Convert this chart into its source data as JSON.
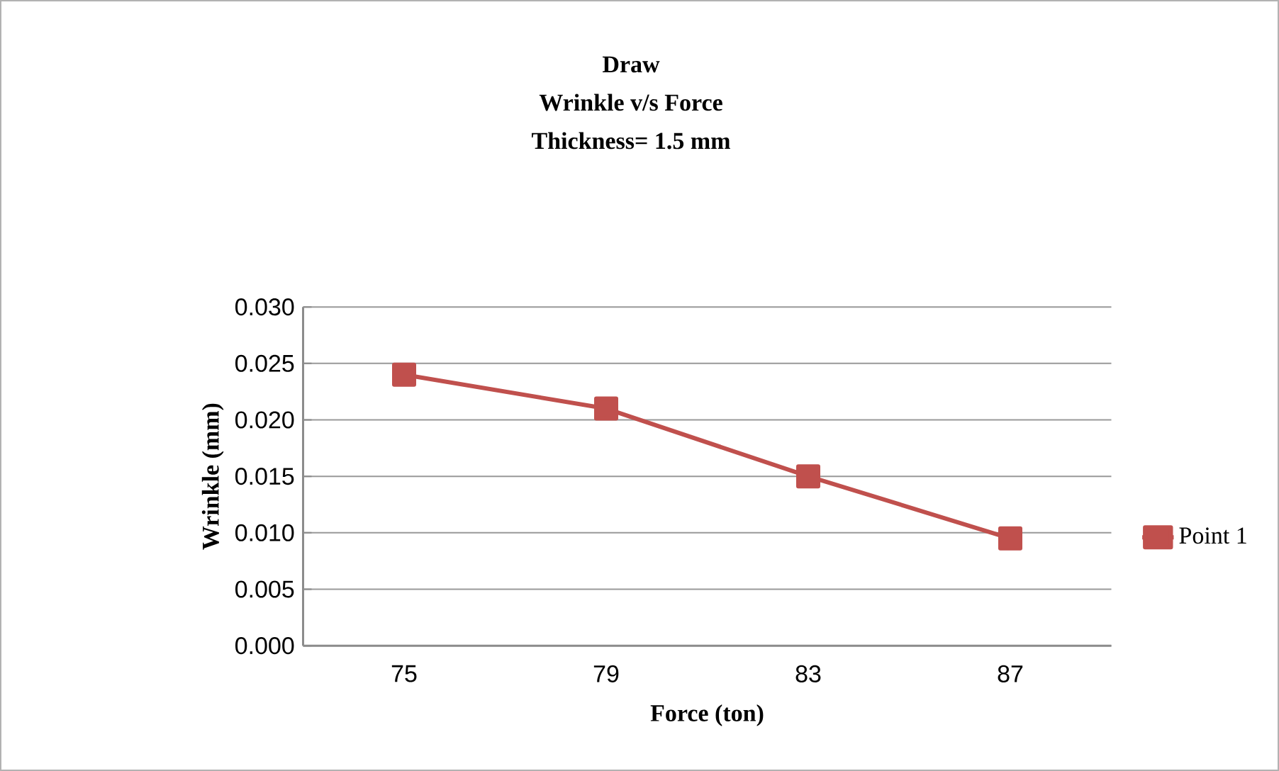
{
  "chart_data": {
    "type": "line",
    "title": "Draw",
    "subtitle": "Wrinkle v/s Force",
    "annotations": [
      "Thickness= 1.5 mm"
    ],
    "xlabel": "Force (ton)",
    "ylabel": "Wrinkle (mm)",
    "categories": [
      "75",
      "79",
      "83",
      "87"
    ],
    "series": [
      {
        "name": "Point 1",
        "color": "#c0504d",
        "values": [
          0.024,
          0.021,
          0.015,
          0.0095
        ]
      }
    ],
    "ylim": [
      0,
      0.03
    ],
    "yticks": [
      {
        "value": 0,
        "label": "0.000"
      },
      {
        "value": 0.005,
        "label": "0.005"
      },
      {
        "value": 0.01,
        "label": "0.010"
      },
      {
        "value": 0.015,
        "label": "0.015"
      },
      {
        "value": 0.02,
        "label": "0.020"
      },
      {
        "value": 0.025,
        "label": "0.025"
      },
      {
        "value": 0.03,
        "label": "0.030"
      }
    ],
    "grid": "y",
    "legend": "right",
    "marker": "square",
    "line_style": "solid"
  }
}
